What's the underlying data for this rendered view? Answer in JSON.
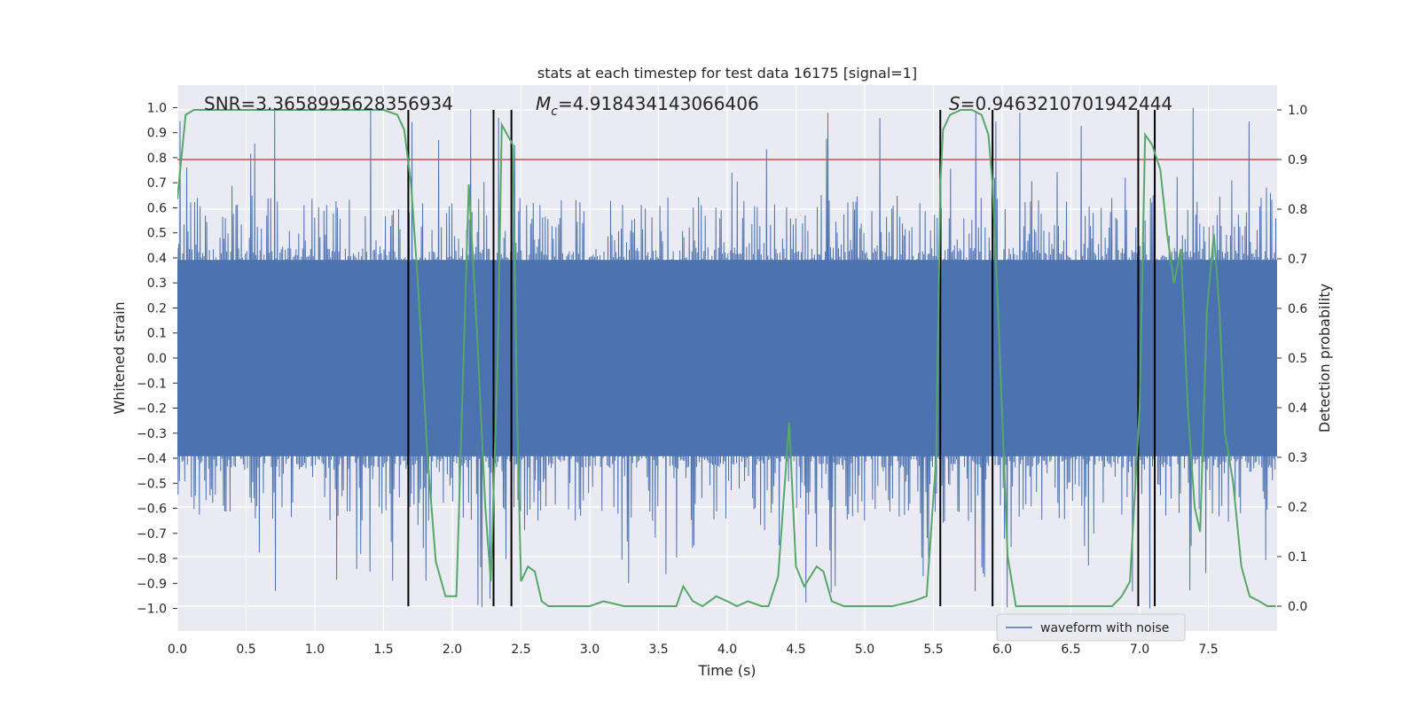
{
  "chart_data": {
    "type": "line",
    "title": "stats at each timestep for test data 16175 [signal=1]",
    "xlabel": "Time (s)",
    "ylabel": "Whitened strain",
    "ylabel_right": "Detection probability",
    "xlim": [
      0.0,
      8.0
    ],
    "ylim": [
      -1.09,
      1.09
    ],
    "ylim_right": [
      -0.05,
      1.05
    ],
    "xticks": [
      0.0,
      0.5,
      1.0,
      1.5,
      2.0,
      2.5,
      3.0,
      3.5,
      4.0,
      4.5,
      5.0,
      5.5,
      6.0,
      6.5,
      7.0,
      7.5
    ],
    "xtick_labels": [
      "0.0",
      "0.5",
      "1.0",
      "1.5",
      "2.0",
      "2.5",
      "3.0",
      "3.5",
      "4.0",
      "4.5",
      "5.0",
      "5.5",
      "6.0",
      "6.5",
      "7.0",
      "7.5"
    ],
    "yticks": [
      1.0,
      0.9,
      0.8,
      0.7,
      0.6,
      0.5,
      0.4,
      0.3,
      0.2,
      0.1,
      0.0,
      -0.1,
      -0.2,
      -0.3,
      -0.4,
      -0.5,
      -0.6,
      -0.7,
      -0.8,
      -0.9,
      -1.0
    ],
    "ytick_labels": [
      "1.0",
      "0.9",
      "0.8",
      "0.7",
      "0.6",
      "0.5",
      "0.4",
      "0.3",
      "0.2",
      "0.1",
      "0.0",
      "−0.1",
      "−0.2",
      "−0.3",
      "−0.4",
      "−0.5",
      "−0.6",
      "−0.7",
      "−0.8",
      "−0.9",
      "−1.0"
    ],
    "yticks_right": [
      1.0,
      0.9,
      0.8,
      0.7,
      0.6,
      0.5,
      0.4,
      0.3,
      0.2,
      0.1,
      0.0
    ],
    "ytick_labels_right": [
      "1.0",
      "0.9",
      "0.8",
      "0.7",
      "0.6",
      "0.5",
      "0.4",
      "0.3",
      "0.2",
      "0.1",
      "0.0"
    ],
    "threshold": 0.9,
    "vertical_lines_x": [
      1.68,
      2.3,
      2.43,
      5.55,
      5.93,
      6.99,
      7.11
    ],
    "annotations": {
      "snr": "SNR=3.3658995628356934",
      "mc_symbol": "M",
      "mc_sub": "c",
      "mc_value": "=4.918434143066406",
      "s_symbol": "S",
      "s_value": "=0.9463210701942444"
    },
    "legend": {
      "label": "waveform with noise",
      "placement": "lower-right"
    },
    "waveform": {
      "name": "waveform with noise",
      "color": "#4c72b0",
      "dense_band": [
        -0.2,
        0.2
      ],
      "outer_band": [
        -0.4,
        0.4
      ],
      "peak_max": 1.0,
      "peak_min": -1.0
    },
    "series": [
      {
        "name": "detection probability",
        "color": "#55a868",
        "x": [
          0.0,
          0.06,
          0.12,
          0.2,
          0.3,
          0.5,
          1.0,
          1.5,
          1.6,
          1.65,
          1.7,
          1.75,
          1.82,
          1.88,
          1.95,
          2.03,
          2.12,
          2.18,
          2.24,
          2.28,
          2.33,
          2.36,
          2.4,
          2.44,
          2.47,
          2.5,
          2.55,
          2.6,
          2.65,
          2.7,
          2.75,
          2.8,
          2.9,
          3.0,
          3.1,
          3.25,
          3.4,
          3.55,
          3.63,
          3.68,
          3.75,
          3.82,
          3.87,
          3.92,
          4.0,
          4.07,
          4.15,
          4.25,
          4.3,
          4.37,
          4.45,
          4.5,
          4.56,
          4.65,
          4.7,
          4.76,
          4.85,
          4.95,
          5.1,
          5.2,
          5.35,
          5.45,
          5.52,
          5.55,
          5.57,
          5.62,
          5.7,
          5.78,
          5.85,
          5.9,
          5.93,
          5.97,
          6.04,
          6.1,
          6.2,
          6.4,
          6.6,
          6.8,
          6.87,
          6.93,
          7.0,
          7.04,
          7.09,
          7.15,
          7.2,
          7.25,
          7.3,
          7.35,
          7.4,
          7.44,
          7.49,
          7.54,
          7.58,
          7.62,
          7.68,
          7.74,
          7.8,
          7.87,
          7.93,
          7.99
        ],
        "values": [
          0.82,
          0.99,
          1.0,
          1.0,
          1.0,
          1.0,
          1.0,
          1.0,
          0.99,
          0.96,
          0.85,
          0.65,
          0.3,
          0.09,
          0.02,
          0.02,
          0.85,
          0.55,
          0.2,
          0.05,
          0.5,
          0.97,
          0.95,
          0.93,
          0.4,
          0.05,
          0.08,
          0.07,
          0.01,
          0.0,
          0.0,
          0.0,
          0.0,
          0.0,
          0.01,
          0.0,
          0.0,
          0.0,
          0.0,
          0.04,
          0.01,
          0.0,
          0.01,
          0.02,
          0.01,
          0.0,
          0.01,
          0.0,
          0.0,
          0.06,
          0.37,
          0.08,
          0.04,
          0.08,
          0.07,
          0.01,
          0.0,
          0.0,
          0.0,
          0.0,
          0.01,
          0.02,
          0.3,
          0.85,
          0.96,
          0.99,
          1.0,
          1.0,
          0.99,
          0.95,
          0.85,
          0.6,
          0.1,
          0.0,
          0.0,
          0.0,
          0.0,
          0.0,
          0.02,
          0.05,
          0.4,
          0.95,
          0.93,
          0.88,
          0.75,
          0.65,
          0.72,
          0.4,
          0.2,
          0.15,
          0.6,
          0.75,
          0.6,
          0.35,
          0.25,
          0.08,
          0.02,
          0.01,
          0.0,
          0.0
        ]
      }
    ]
  }
}
